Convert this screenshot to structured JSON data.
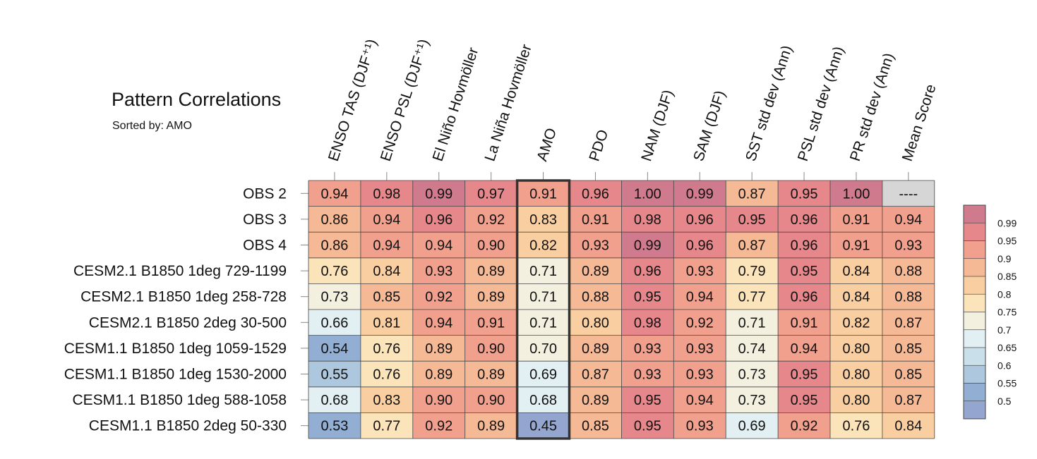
{
  "chart_data": {
    "type": "heatmap",
    "title": "Pattern Correlations",
    "subtitle_label": "Sorted by:",
    "subtitle_value": "AMO",
    "columns": [
      "ENSO TAS (DJF⁺¹)",
      "ENSO PSL (DJF⁺¹)",
      "El Niño Hovmöller",
      "La Niña Hovmöller",
      "AMO",
      "PDO",
      "NAM (DJF)",
      "SAM (DJF)",
      "SST std dev (Ann)",
      "PSL std dev (Ann)",
      "PR std dev (Ann)",
      "Mean Score"
    ],
    "rows": [
      "OBS 2",
      "OBS 3",
      "OBS 4",
      "CESM2.1 B1850 1deg 729-1199",
      "CESM2.1 B1850 1deg 258-728",
      "CESM2.1 B1850 2deg 30-500",
      "CESM1.1 B1850 1deg 1059-1529",
      "CESM1.1 B1850 1deg 1530-2000",
      "CESM1.1 B1850 1deg 588-1058",
      "CESM1.1 B1850 2deg 50-330"
    ],
    "values": [
      [
        "0.94",
        "0.98",
        "0.99",
        "0.97",
        "0.91",
        "0.96",
        "1.00",
        "0.99",
        "0.87",
        "0.95",
        "1.00",
        "----"
      ],
      [
        "0.86",
        "0.94",
        "0.96",
        "0.92",
        "0.83",
        "0.91",
        "0.98",
        "0.96",
        "0.95",
        "0.96",
        "0.91",
        "0.94"
      ],
      [
        "0.86",
        "0.94",
        "0.94",
        "0.90",
        "0.82",
        "0.93",
        "0.99",
        "0.96",
        "0.87",
        "0.96",
        "0.91",
        "0.93"
      ],
      [
        "0.76",
        "0.84",
        "0.93",
        "0.89",
        "0.71",
        "0.89",
        "0.96",
        "0.93",
        "0.79",
        "0.95",
        "0.84",
        "0.88"
      ],
      [
        "0.73",
        "0.85",
        "0.92",
        "0.89",
        "0.71",
        "0.88",
        "0.95",
        "0.94",
        "0.77",
        "0.96",
        "0.84",
        "0.88"
      ],
      [
        "0.66",
        "0.81",
        "0.94",
        "0.91",
        "0.71",
        "0.80",
        "0.98",
        "0.92",
        "0.71",
        "0.91",
        "0.82",
        "0.87"
      ],
      [
        "0.54",
        "0.76",
        "0.89",
        "0.90",
        "0.70",
        "0.89",
        "0.93",
        "0.93",
        "0.74",
        "0.94",
        "0.80",
        "0.85"
      ],
      [
        "0.55",
        "0.76",
        "0.89",
        "0.89",
        "0.69",
        "0.87",
        "0.93",
        "0.93",
        "0.73",
        "0.95",
        "0.80",
        "0.85"
      ],
      [
        "0.68",
        "0.83",
        "0.90",
        "0.90",
        "0.68",
        "0.89",
        "0.95",
        "0.94",
        "0.73",
        "0.95",
        "0.80",
        "0.87"
      ],
      [
        "0.53",
        "0.77",
        "0.92",
        "0.89",
        "0.45",
        "0.85",
        "0.95",
        "0.93",
        "0.69",
        "0.92",
        "0.76",
        "0.84"
      ]
    ],
    "highlighted_column": "AMO",
    "missing_color": "#d6d6d6",
    "colorbar": {
      "labels": [
        "0.99",
        "0.95",
        "0.9",
        "0.85",
        "0.8",
        "0.75",
        "0.7",
        "0.65",
        "0.6",
        "0.55",
        "0.5"
      ],
      "levels": [
        0.99,
        0.95,
        0.9,
        0.85,
        0.8,
        0.75,
        0.7,
        0.65,
        0.6,
        0.55,
        0.5
      ],
      "colors": [
        "#d07a8d",
        "#e6878b",
        "#f0a08d",
        "#f6b996",
        "#f9cfa2",
        "#fbe3ba",
        "#f3f0e0",
        "#e2eff3",
        "#c9e0ea",
        "#adc8de",
        "#92aed3",
        "#94a6cf"
      ]
    }
  }
}
